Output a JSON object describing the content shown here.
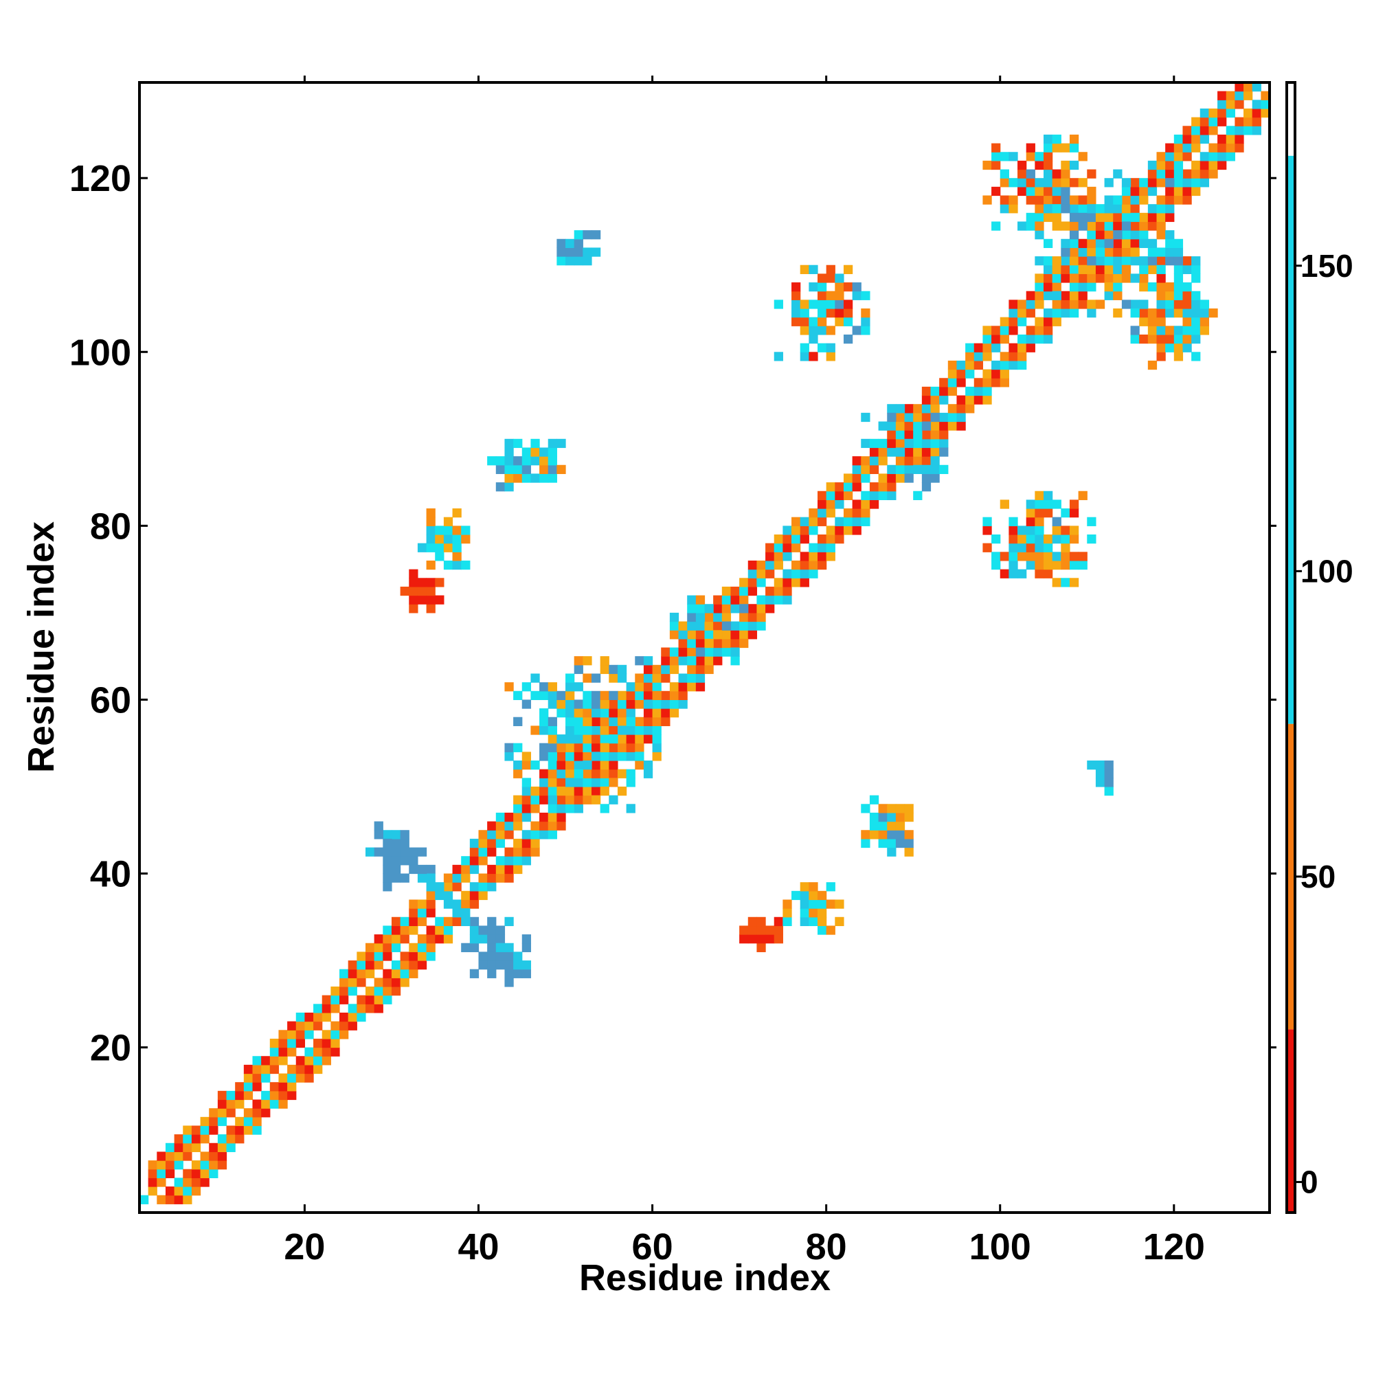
{
  "chart_data": {
    "type": "heatmap",
    "title": "",
    "xlabel": "Residue index",
    "ylabel": "Residue index",
    "xlim": [
      1,
      131
    ],
    "ylim": [
      1,
      131
    ],
    "x_ticks": [
      20,
      40,
      60,
      80,
      100,
      120
    ],
    "y_ticks": [
      20,
      40,
      60,
      80,
      100,
      120
    ],
    "grid": false,
    "legend": "colorbar-right",
    "colorbar": {
      "min": -5,
      "max": 180,
      "ticks": [
        0,
        50,
        100,
        150
      ],
      "bands": [
        {
          "from": -5,
          "to": 25,
          "color": "#e8130c"
        },
        {
          "from": 25,
          "to": 75,
          "color": "#f57a12"
        },
        {
          "from": 75,
          "to": 168,
          "color": "#1ad4e8"
        },
        {
          "from": 168,
          "to": 180,
          "color": "#ffffff"
        }
      ]
    },
    "palette": {
      "red": "#ee1c0c",
      "red_orange": "#f4520f",
      "orange": "#f98c12",
      "amber": "#f7a912",
      "cyan": "#16e2ee",
      "light_blue": "#22c8e6",
      "steel_blue": "#4b96c7"
    },
    "diagonal_bands": [
      {
        "from": 2,
        "to": 34,
        "color_pattern": [
          "orange",
          "red",
          "cyan",
          "red_orange",
          "amber"
        ]
      },
      {
        "from": 36,
        "to": 130,
        "color_pattern": [
          "orange",
          "red",
          "cyan",
          "red_orange",
          "amber",
          "light_blue"
        ]
      }
    ],
    "patches": [
      {
        "name": "cross-36-upper",
        "x": [
          27,
          34
        ],
        "y": [
          38,
          44
        ],
        "values": [
          130,
          160
        ]
      },
      {
        "name": "cross-36-lower",
        "x": [
          38,
          45
        ],
        "y": [
          27,
          34
        ],
        "values": [
          130,
          160
        ]
      },
      {
        "name": "patch-50-112",
        "x": [
          49,
          53
        ],
        "y": [
          110,
          113
        ],
        "values": [
          100,
          150
        ]
      },
      {
        "name": "patch-112-50",
        "x": [
          110,
          113
        ],
        "y": [
          49,
          53
        ],
        "values": [
          100,
          150
        ]
      },
      {
        "name": "patch-33-72",
        "x": [
          31,
          35
        ],
        "y": [
          70,
          74
        ],
        "values": [
          0,
          20
        ]
      },
      {
        "name": "patch-72-33",
        "x": [
          70,
          74
        ],
        "y": [
          31,
          35
        ],
        "values": [
          0,
          20
        ]
      },
      {
        "name": "patch-35-77",
        "x": [
          33,
          38
        ],
        "y": [
          75,
          81
        ],
        "values": [
          40,
          110
        ]
      },
      {
        "name": "patch-77-35",
        "x": [
          75,
          81
        ],
        "y": [
          33,
          38
        ],
        "values": [
          40,
          110
        ]
      },
      {
        "name": "patch-48-85",
        "x": [
          41,
          49
        ],
        "y": [
          84,
          89
        ],
        "values": [
          40,
          150
        ]
      },
      {
        "name": "patch-85-48",
        "x": [
          84,
          89
        ],
        "y": [
          41,
          49
        ],
        "values": [
          40,
          150
        ]
      },
      {
        "name": "patch-88-91",
        "x": [
          83,
          93
        ],
        "y": [
          86,
          93
        ],
        "values": [
          80,
          150
        ]
      },
      {
        "name": "patch-91-88",
        "x": [
          86,
          93
        ],
        "y": [
          83,
          93
        ],
        "values": [
          80,
          150
        ]
      },
      {
        "name": "patch-66-68",
        "x": [
          62,
          70
        ],
        "y": [
          64,
          71
        ],
        "values": [
          40,
          150
        ]
      },
      {
        "name": "patch-55-56",
        "x": [
          43,
          60
        ],
        "y": [
          47,
          64
        ],
        "values": [
          40,
          150
        ]
      },
      {
        "name": "patch-78-105",
        "x": [
          74,
          84
        ],
        "y": [
          99,
          109
        ],
        "values": [
          0,
          140
        ]
      },
      {
        "name": "patch-105-78",
        "x": [
          98,
          110
        ],
        "y": [
          73,
          83
        ],
        "values": [
          0,
          140
        ]
      },
      {
        "name": "patch-103-120",
        "x": [
          98,
          110
        ],
        "y": [
          114,
          124
        ],
        "values": [
          0,
          140
        ]
      },
      {
        "name": "patch-120-103",
        "x": [
          114,
          124
        ],
        "y": [
          98,
          110
        ],
        "values": [
          0,
          140
        ]
      },
      {
        "name": "patch-112-112",
        "x": [
          104,
          120
        ],
        "y": [
          104,
          120
        ],
        "values": [
          40,
          160
        ]
      }
    ],
    "sample_cells": [
      {
        "x": 1,
        "y": 2,
        "value": 100
      },
      {
        "x": 36,
        "y": 36,
        "value": 120
      },
      {
        "x": 30,
        "y": 41,
        "value": 150
      },
      {
        "x": 41,
        "y": 30,
        "value": 150
      },
      {
        "x": 51,
        "y": 112,
        "value": 140
      },
      {
        "x": 112,
        "y": 51,
        "value": 140
      },
      {
        "x": 32,
        "y": 71,
        "value": 5
      },
      {
        "x": 71,
        "y": 32,
        "value": 5
      }
    ]
  }
}
